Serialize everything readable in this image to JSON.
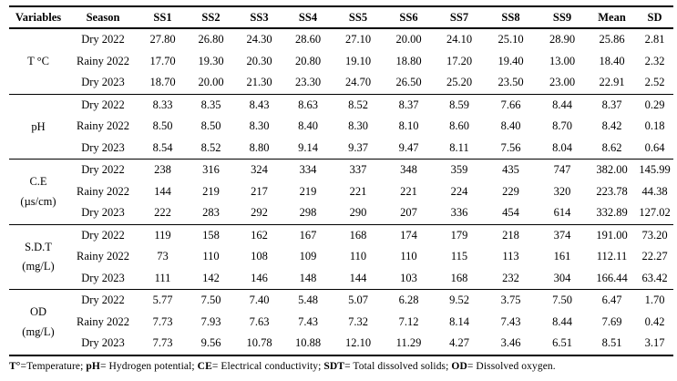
{
  "table": {
    "header": [
      "Variables",
      "Season",
      "SS1",
      "SS2",
      "SS3",
      "SS4",
      "SS5",
      "SS6",
      "SS7",
      "SS8",
      "SS9",
      "Mean",
      "SD"
    ],
    "sections": [
      {
        "variable": "T °C",
        "rows": [
          {
            "season": "Dry 2022",
            "values": [
              "27.80",
              "26.80",
              "24.30",
              "28.60",
              "27.10",
              "20.00",
              "24.10",
              "25.10",
              "28.90",
              "25.86",
              "2.81"
            ]
          },
          {
            "season": "Rainy 2022",
            "values": [
              "17.70",
              "19.30",
              "20.30",
              "20.80",
              "19.10",
              "18.80",
              "17.20",
              "19.40",
              "13.00",
              "18.40",
              "2.32"
            ]
          },
          {
            "season": "Dry 2023",
            "values": [
              "18.70",
              "20.00",
              "21.30",
              "23.30",
              "24.70",
              "26.50",
              "25.20",
              "23.50",
              "23.00",
              "22.91",
              "2.52"
            ]
          }
        ]
      },
      {
        "variable": "pH",
        "rows": [
          {
            "season": "Dry 2022",
            "values": [
              "8.33",
              "8.35",
              "8.43",
              "8.63",
              "8.52",
              "8.37",
              "8.59",
              "7.66",
              "8.44",
              "8.37",
              "0.29"
            ]
          },
          {
            "season": "Rainy 2022",
            "values": [
              "8.50",
              "8.50",
              "8.30",
              "8.40",
              "8.30",
              "8.10",
              "8.60",
              "8.40",
              "8.70",
              "8.42",
              "0.18"
            ]
          },
          {
            "season": "Dry 2023",
            "values": [
              "8.54",
              "8.52",
              "8.80",
              "9.14",
              "9.37",
              "9.47",
              "8.11",
              "7.56",
              "8.04",
              "8.62",
              "0.64"
            ]
          }
        ]
      },
      {
        "variable": "C.E",
        "unit": "(µs/cm)",
        "rows": [
          {
            "season": "Dry 2022",
            "values": [
              "238",
              "316",
              "324",
              "334",
              "337",
              "348",
              "359",
              "435",
              "747",
              "382.00",
              "145.99"
            ]
          },
          {
            "season": "Rainy 2022",
            "values": [
              "144",
              "219",
              "217",
              "219",
              "221",
              "221",
              "224",
              "229",
              "320",
              "223.78",
              "44.38"
            ]
          },
          {
            "season": "Dry 2023",
            "values": [
              "222",
              "283",
              "292",
              "298",
              "290",
              "207",
              "336",
              "454",
              "614",
              "332.89",
              "127.02"
            ]
          }
        ]
      },
      {
        "variable": "S.D.T",
        "unit": "(mg/L)",
        "rows": [
          {
            "season": "Dry 2022",
            "values": [
              "119",
              "158",
              "162",
              "167",
              "168",
              "174",
              "179",
              "218",
              "374",
              "191.00",
              "73.20"
            ]
          },
          {
            "season": "Rainy 2022",
            "values": [
              "73",
              "110",
              "108",
              "109",
              "110",
              "110",
              "115",
              "113",
              "161",
              "112.11",
              "22.27"
            ]
          },
          {
            "season": "Dry 2023",
            "values": [
              "111",
              "142",
              "146",
              "148",
              "144",
              "103",
              "168",
              "232",
              "304",
              "166.44",
              "63.42"
            ]
          }
        ]
      },
      {
        "variable": "OD",
        "unit": "(mg/L)",
        "rows": [
          {
            "season": "Dry 2022",
            "values": [
              "5.77",
              "7.50",
              "7.40",
              "5.48",
              "5.07",
              "6.28",
              "9.52",
              "3.75",
              "7.50",
              "6.47",
              "1.70"
            ]
          },
          {
            "season": "Rainy 2022",
            "values": [
              "7.73",
              "7.93",
              "7.63",
              "7.43",
              "7.32",
              "7.12",
              "8.14",
              "7.43",
              "8.44",
              "7.69",
              "0.42"
            ]
          },
          {
            "season": "Dry 2023",
            "values": [
              "7.73",
              "9.56",
              "10.78",
              "10.88",
              "12.10",
              "11.29",
              "4.27",
              "3.46",
              "6.51",
              "8.51",
              "3.17"
            ]
          }
        ]
      }
    ],
    "footnote_segments": [
      {
        "text": "T°",
        "bold": true
      },
      {
        "text": "=Temperature; ",
        "bold": false
      },
      {
        "text": "pH",
        "bold": true
      },
      {
        "text": "= Hydrogen potential; ",
        "bold": false
      },
      {
        "text": "CE",
        "bold": true
      },
      {
        "text": "= Electrical conductivity; ",
        "bold": false
      },
      {
        "text": "SDT",
        "bold": true
      },
      {
        "text": "= Total dissolved solids; ",
        "bold": false
      },
      {
        "text": "OD",
        "bold": true
      },
      {
        "text": "= Dissolved oxygen.",
        "bold": false
      }
    ]
  }
}
